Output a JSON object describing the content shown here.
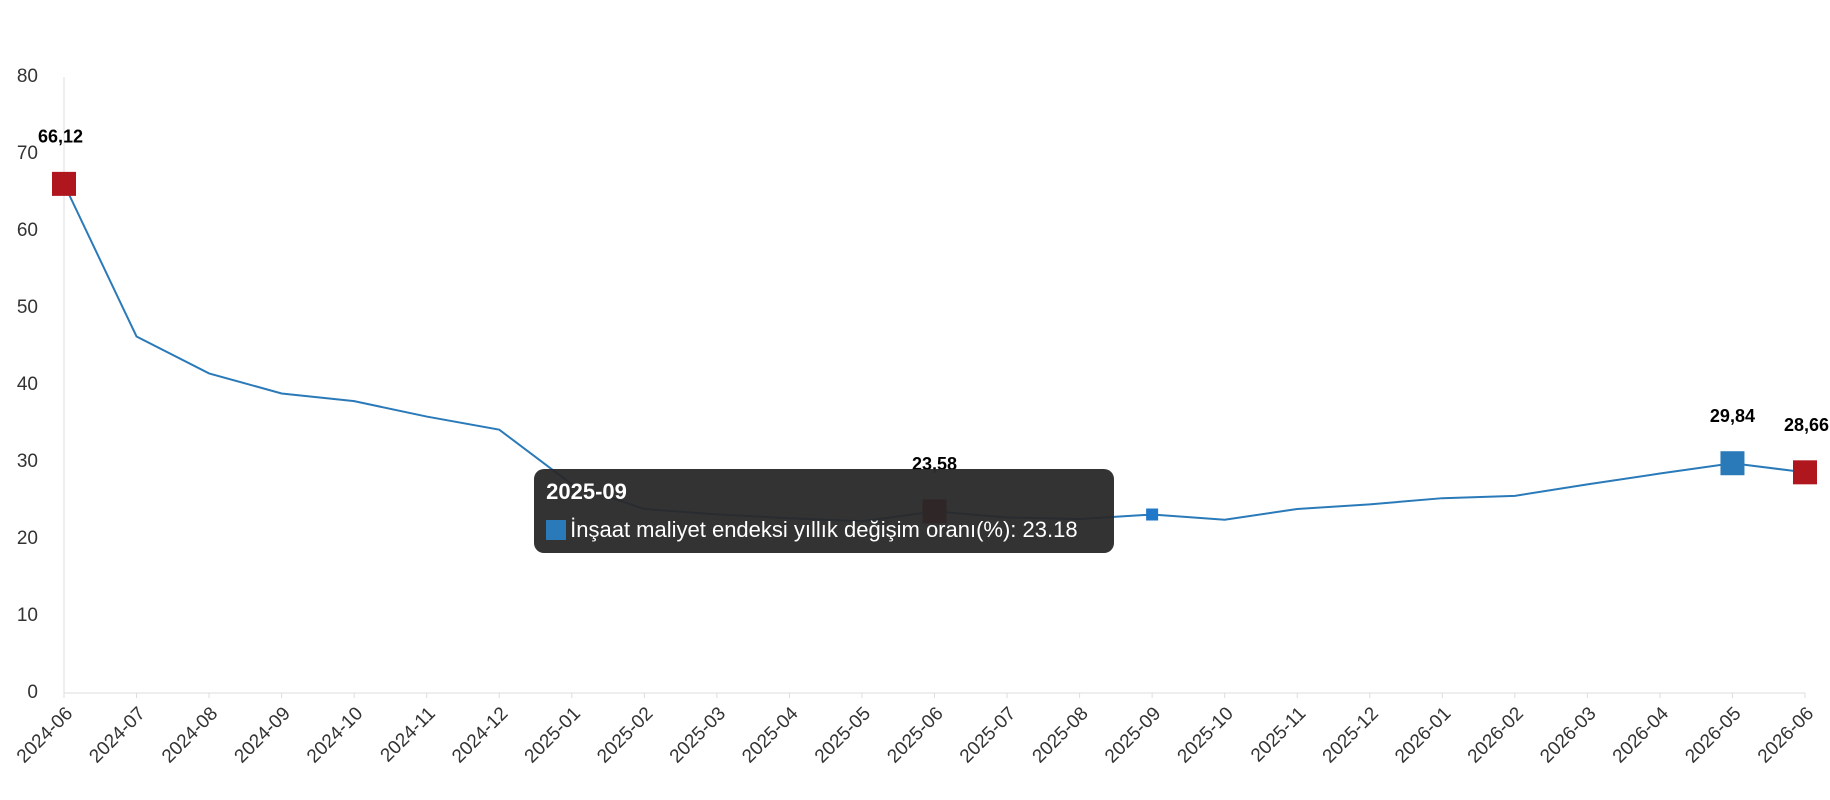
{
  "chart_data": {
    "type": "line",
    "categories": [
      "2024-06",
      "2024-07",
      "2024-08",
      "2024-09",
      "2024-10",
      "2024-11",
      "2024-12",
      "2025-01",
      "2025-02",
      "2025-03",
      "2025-04",
      "2025-05",
      "2025-06",
      "2025-07",
      "2025-08",
      "2025-09",
      "2025-10",
      "2025-11",
      "2025-12",
      "2026-01",
      "2026-02",
      "2026-03",
      "2026-04",
      "2026-05",
      "2026-06"
    ],
    "series": [
      {
        "name": "İnşaat maliyet endeksi yıllık değişim oranı(%)",
        "color": "#2a7ab9",
        "values": [
          66.12,
          46.3,
          41.5,
          38.9,
          37.9,
          35.9,
          34.2,
          27.1,
          23.9,
          23.2,
          22.7,
          22.3,
          23.58,
          22.8,
          22.6,
          23.18,
          22.5,
          23.9,
          24.5,
          25.3,
          25.6,
          27.1,
          28.5,
          29.84,
          28.66
        ],
        "value_labels": [
          "66,12",
          null,
          null,
          null,
          null,
          null,
          null,
          null,
          null,
          null,
          null,
          null,
          "23,58",
          null,
          null,
          null,
          null,
          null,
          null,
          null,
          null,
          null,
          null,
          "29,84",
          "28,66"
        ],
        "marker_colors": [
          "#b0161e",
          null,
          null,
          null,
          null,
          null,
          null,
          null,
          null,
          null,
          null,
          null,
          "#b0161e",
          null,
          null,
          "#1f78c8",
          null,
          null,
          null,
          null,
          null,
          null,
          null,
          "#2a7ab9",
          "#b0161e"
        ]
      }
    ],
    "ylim": [
      0,
      80
    ],
    "yticks": [
      0,
      10,
      20,
      30,
      40,
      50,
      60,
      70,
      80
    ],
    "grid": false,
    "tooltip": {
      "category": "2025-09",
      "series": "İnşaat maliyet endeksi yıllık değişim oranı(%)",
      "value": 23.18
    }
  }
}
